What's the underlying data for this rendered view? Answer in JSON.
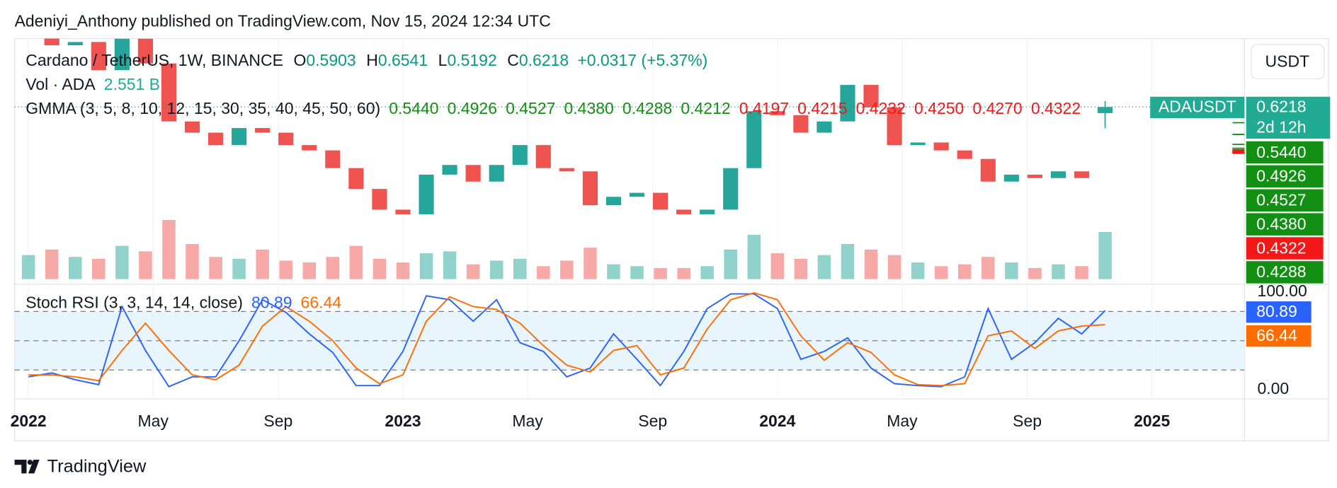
{
  "header": {
    "text": "Adeniyi_Anthony published on TradingView.com, Nov 15, 2024 12:34 UTC"
  },
  "currency_button": "USDT",
  "footer": {
    "brand": "TradingView"
  },
  "chart_data": [
    {
      "type": "candlestick",
      "title": "Cardano / TetherUS, 1W, BINANCE",
      "log_scale": true,
      "x": [
        2022,
        2022.0625,
        2022.125,
        2022.1875,
        2022.25,
        2022.3125,
        2022.375,
        2022.4375,
        2022.5,
        2022.5625,
        2022.625,
        2022.6875,
        2022.75,
        2022.8125,
        2022.875,
        2022.9375,
        2023,
        2023.0625,
        2023.125,
        2023.1875,
        2023.25,
        2023.3125,
        2023.375,
        2023.4375,
        2023.5,
        2023.5625,
        2023.625,
        2023.6875,
        2023.75,
        2023.8125,
        2023.875,
        2023.9375,
        2024,
        2024.0625,
        2024.125,
        2024.1875,
        2024.25,
        2024.3125,
        2024.375,
        2024.4375,
        2024.5,
        2024.5625,
        2024.625,
        2024.6875,
        2024.75,
        2024.8125,
        2024.875
      ],
      "xlim": [
        2021.963,
        2025.247
      ],
      "xticks": [
        2022,
        {
          "value": 2022.333,
          "label": "May"
        },
        {
          "value": 2022.667,
          "label": "Sep"
        },
        2023,
        {
          "value": 2023.333,
          "label": "May"
        },
        {
          "value": 2023.667,
          "label": "Sep"
        },
        2024,
        {
          "value": 2024.333,
          "label": "May"
        },
        {
          "value": 2024.667,
          "label": "Sep"
        },
        2025
      ],
      "ylim": [
        0.14,
        1.3
      ],
      "series": [
        {
          "name": "ADAUSDT",
          "up_color": "#26a69a",
          "down_color": "#ef5350",
          "values": [
            1.2,
            1.05,
            1.08,
            0.85,
            1.11,
            0.9,
            0.55,
            0.5,
            0.45,
            0.52,
            0.5,
            0.45,
            0.43,
            0.37,
            0.31,
            0.26,
            0.25,
            0.35,
            0.38,
            0.33,
            0.38,
            0.45,
            0.37,
            0.36,
            0.27,
            0.29,
            0.3,
            0.26,
            0.25,
            0.26,
            0.37,
            0.6,
            0.58,
            0.5,
            0.55,
            0.75,
            0.62,
            0.45,
            0.46,
            0.43,
            0.4,
            0.33,
            0.35,
            0.34,
            0.36,
            0.34,
            0.6218
          ]
        }
      ],
      "ohlc": {
        "o_label": "O",
        "open": 0.5903,
        "h_label": "H",
        "high": 0.6541,
        "l_label": "L",
        "low": 0.5192,
        "c_label": "C",
        "change": "+0.0317 (+5.37%)"
      },
      "countdown": "2d 12h",
      "volume": {
        "title": "Vol · ADA",
        "value_label": "2.551 B",
        "ylim": [
          0,
          6.3
        ],
        "values": [
          1.3,
          1.6,
          1.2,
          1.1,
          1.8,
          1.5,
          3.2,
          1.9,
          1.2,
          1.1,
          1.6,
          1.0,
          0.9,
          1.2,
          1.8,
          1.1,
          0.9,
          1.4,
          1.5,
          0.8,
          1.0,
          1.1,
          0.7,
          1.0,
          1.7,
          0.8,
          0.7,
          0.6,
          0.6,
          0.7,
          1.6,
          2.4,
          1.4,
          1.1,
          1.3,
          1.9,
          1.6,
          1.3,
          0.9,
          0.7,
          0.8,
          1.2,
          0.9,
          0.6,
          0.8,
          0.7,
          2.551
        ]
      },
      "gmma": {
        "title": "GMMA (3, 5, 8, 10, 12, 15, 30, 35, 40, 45, 50, 60)",
        "values": [
          {
            "value": 0.544,
            "label": "0.5440"
          },
          {
            "value": 0.4926,
            "label": "0.4926"
          },
          {
            "value": 0.4527,
            "label": "0.4527"
          },
          {
            "value": 0.438,
            "label": "0.4380"
          },
          {
            "value": 0.4288,
            "label": "0.4288"
          },
          {
            "value": 0.4212,
            "label": "0.4212"
          },
          {
            "value": 0.4197,
            "label": "0.4197"
          },
          {
            "value": 0.4215,
            "label": "0.4215"
          },
          {
            "value": 0.4232,
            "label": "0.4232"
          },
          {
            "value": 0.425,
            "label": "0.4250"
          },
          {
            "value": 0.427,
            "label": "0.4270"
          },
          {
            "value": 0.4322,
            "label": "0.4322"
          }
        ],
        "colors": [
          "#138f13",
          "#138f13",
          "#138f13",
          "#138f13",
          "#138f13",
          "#138f13",
          "#f21818",
          "#f21818",
          "#f21818",
          "#f21818",
          "#f21818",
          "#f21818"
        ]
      }
    },
    {
      "type": "line",
      "title": "Stoch RSI (3, 3, 14, 14, close)",
      "ylim": [
        0,
        100
      ],
      "yticks": [
        {
          "value": 0,
          "label": "0.00"
        },
        {
          "value": 100,
          "label": "100.00"
        }
      ],
      "levels": [
        20,
        50,
        80
      ],
      "band_color": "#e3f2fd",
      "series": [
        {
          "color": "#2962ff",
          "values": [
            13,
            17,
            10,
            5,
            85,
            40,
            3,
            13,
            13,
            50,
            92,
            79,
            57,
            38,
            4,
            4,
            39,
            96,
            92,
            70,
            92,
            48,
            39,
            13,
            22,
            57,
            31,
            4,
            39,
            83,
            98,
            98,
            83,
            31,
            39,
            53,
            22,
            6,
            4,
            3,
            13,
            83,
            31,
            48,
            73,
            57,
            80.89
          ]
        },
        {
          "color": "#ff6d00",
          "values": [
            15,
            15,
            13,
            9,
            40,
            68,
            40,
            15,
            10,
            25,
            65,
            85,
            70,
            50,
            22,
            6,
            15,
            70,
            95,
            85,
            82,
            68,
            45,
            25,
            18,
            40,
            45,
            15,
            22,
            62,
            92,
            99,
            92,
            55,
            30,
            48,
            38,
            15,
            5,
            4,
            6,
            55,
            60,
            42,
            60,
            65,
            66.44
          ]
        }
      ]
    }
  ]
}
